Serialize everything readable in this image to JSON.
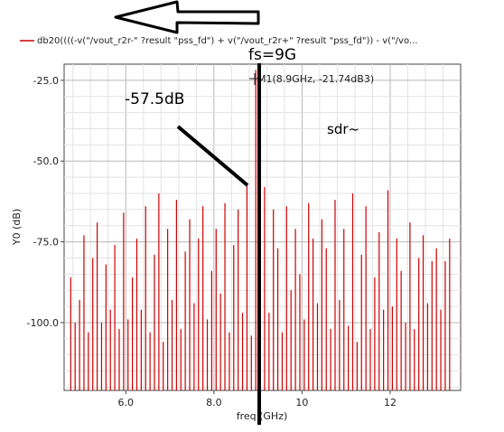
{
  "chart_data": {
    "type": "bar",
    "legend_entry": "db20((((-v(\"/vout_r2r-\" ?result \"pss_fd\") + v(\"/vout_r2r+\" ?result \"pss_fd\")) - v(\"/vo...",
    "xlabel": "freq (GHz)",
    "ylabel": "Y0 (dB)",
    "xlim": [
      4.6,
      13.6
    ],
    "ylim": [
      -121,
      -20
    ],
    "x_ticks": [
      6,
      8,
      10,
      12
    ],
    "x_tick_labels": [
      "6.0",
      "8.0",
      "10",
      "12"
    ],
    "y_ticks": [
      -25,
      -50,
      -75,
      -100
    ],
    "y_tick_labels": [
      "-25.0",
      "-50.0",
      "-75.0",
      "-100.0"
    ],
    "grid": true,
    "series_color": "#cc0000",
    "x": [
      4.75,
      4.85,
      4.95,
      5.05,
      5.15,
      5.25,
      5.35,
      5.45,
      5.55,
      5.65,
      5.75,
      5.85,
      5.95,
      6.05,
      6.15,
      6.25,
      6.35,
      6.45,
      6.55,
      6.65,
      6.75,
      6.85,
      6.95,
      7.05,
      7.15,
      7.25,
      7.35,
      7.45,
      7.55,
      7.65,
      7.75,
      7.85,
      7.95,
      8.05,
      8.15,
      8.25,
      8.35,
      8.45,
      8.55,
      8.65,
      8.75,
      8.85,
      8.95,
      9.05,
      9.15,
      9.25,
      9.35,
      9.45,
      9.55,
      9.65,
      9.75,
      9.85,
      9.95,
      10.05,
      10.15,
      10.25,
      10.35,
      10.45,
      10.55,
      10.65,
      10.75,
      10.85,
      10.95,
      11.05,
      11.15,
      11.25,
      11.35,
      11.45,
      11.55,
      11.65,
      11.75,
      11.85,
      11.95,
      12.05,
      12.15,
      12.25,
      12.35,
      12.45,
      12.55,
      12.65,
      12.75,
      12.85,
      12.95,
      13.05,
      13.15,
      13.25,
      13.35
    ],
    "values": [
      -86,
      -100,
      -93,
      -73,
      -103,
      -80,
      -69,
      -100,
      -82,
      -96,
      -76,
      -102,
      -66,
      -99,
      -86,
      -74,
      -96,
      -64,
      -103,
      -79,
      -60,
      -106,
      -71,
      -93,
      -62,
      -102,
      -78,
      -68,
      -94,
      -74,
      -64,
      -99,
      -84,
      -71,
      -91,
      -63,
      -103,
      -76,
      -65,
      -97,
      -57.5,
      -104,
      -21.74,
      -103,
      -58,
      -97,
      -65,
      -77,
      -103,
      -64,
      -90,
      -71,
      -85,
      -99,
      -63,
      -74,
      -94,
      -68,
      -77,
      -102,
      -62,
      -93,
      -71,
      -101,
      -60,
      -106,
      -79,
      -64,
      -102,
      -86,
      -72,
      -96,
      -59,
      -95,
      -74,
      -84,
      -100,
      -69,
      -102,
      -80,
      -73,
      -94,
      -81,
      -77,
      -96,
      -81,
      -74
    ],
    "marker": {
      "label": "M1(8.9GHz, -21.74dB3)",
      "x": 8.9,
      "y": -21.74
    },
    "annotations": {
      "level_text": "-57.5dB",
      "fs_text": "fs=9G",
      "sdr_text": "sdr~"
    }
  }
}
